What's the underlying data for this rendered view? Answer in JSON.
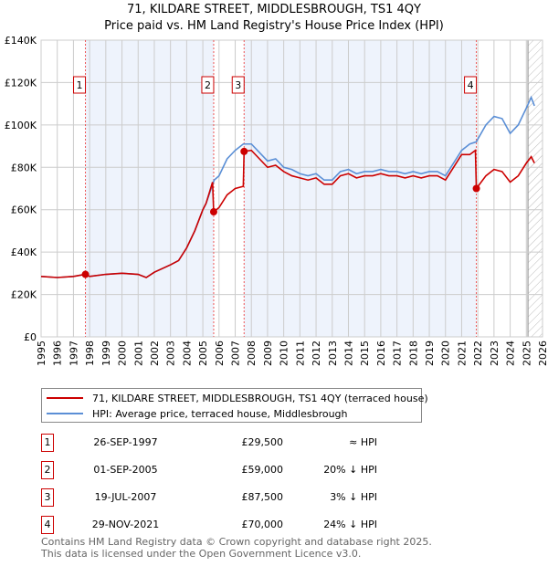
{
  "title": "71, KILDARE STREET, MIDDLESBROUGH, TS1 4QY",
  "subtitle": "Price paid vs. HM Land Registry's House Price Index (HPI)",
  "chart_data": {
    "type": "line",
    "xlim": [
      1995,
      2026
    ],
    "ylim": [
      0,
      140000
    ],
    "x_ticks": [
      "1995",
      "1996",
      "1997",
      "1998",
      "1999",
      "2000",
      "2001",
      "2002",
      "2003",
      "2004",
      "2005",
      "2006",
      "2007",
      "2008",
      "2009",
      "2010",
      "2011",
      "2012",
      "2013",
      "2014",
      "2015",
      "2016",
      "2017",
      "2018",
      "2019",
      "2020",
      "2021",
      "2022",
      "2023",
      "2024",
      "2025",
      "2026"
    ],
    "y_ticks": [
      {
        "v": 0,
        "label": "£0"
      },
      {
        "v": 20000,
        "label": "£20K"
      },
      {
        "v": 40000,
        "label": "£40K"
      },
      {
        "v": 60000,
        "label": "£60K"
      },
      {
        "v": 80000,
        "label": "£80K"
      },
      {
        "v": 100000,
        "label": "£100K"
      },
      {
        "v": 120000,
        "label": "£120K"
      },
      {
        "v": 140000,
        "label": "£140K"
      }
    ],
    "grid": true,
    "series": [
      {
        "name": "HPI: Average price, terraced house, Middlesbrough",
        "color": "#5b8fd6",
        "points": [
          [
            1995,
            28500
          ],
          [
            1996,
            28000
          ],
          [
            1997,
            28500
          ],
          [
            1997.75,
            29500
          ],
          [
            1998,
            28500
          ],
          [
            1999,
            29500
          ],
          [
            2000,
            30000
          ],
          [
            2001,
            29500
          ],
          [
            2001.5,
            28000
          ],
          [
            2002,
            30500
          ],
          [
            2003,
            34000
          ],
          [
            2003.5,
            36000
          ],
          [
            2004,
            42000
          ],
          [
            2004.5,
            50000
          ],
          [
            2005,
            60000
          ],
          [
            2005.2,
            63000
          ],
          [
            2005.7,
            74000
          ],
          [
            2006,
            76000
          ],
          [
            2006.5,
            84000
          ],
          [
            2007,
            88000
          ],
          [
            2007.5,
            91000
          ],
          [
            2008,
            91000
          ],
          [
            2008.5,
            87000
          ],
          [
            2009,
            83000
          ],
          [
            2009.5,
            84000
          ],
          [
            2010,
            80000
          ],
          [
            2010.5,
            79000
          ],
          [
            2011,
            77000
          ],
          [
            2011.5,
            76000
          ],
          [
            2012,
            77000
          ],
          [
            2012.5,
            74000
          ],
          [
            2013,
            74000
          ],
          [
            2013.5,
            78000
          ],
          [
            2014,
            79000
          ],
          [
            2014.5,
            77000
          ],
          [
            2015,
            78000
          ],
          [
            2015.5,
            78000
          ],
          [
            2016,
            79000
          ],
          [
            2016.5,
            78000
          ],
          [
            2017,
            78000
          ],
          [
            2017.5,
            77000
          ],
          [
            2018,
            78000
          ],
          [
            2018.5,
            77000
          ],
          [
            2019,
            78000
          ],
          [
            2019.5,
            78000
          ],
          [
            2020,
            76000
          ],
          [
            2020.5,
            82000
          ],
          [
            2021,
            88000
          ],
          [
            2021.5,
            91000
          ],
          [
            2021.9,
            92000
          ],
          [
            2022.5,
            100000
          ],
          [
            2023,
            104000
          ],
          [
            2023.5,
            103000
          ],
          [
            2024,
            96000
          ],
          [
            2024.5,
            100000
          ],
          [
            2025,
            108000
          ],
          [
            2025.3,
            113000
          ],
          [
            2025.5,
            109000
          ]
        ]
      },
      {
        "name": "71, KILDARE STREET, MIDDLESBROUGH, TS1 4QY (terraced house)",
        "color": "#cc0000",
        "points": [
          [
            1995,
            28500
          ],
          [
            1996,
            28000
          ],
          [
            1997,
            28500
          ],
          [
            1997.74,
            29500
          ],
          [
            1998,
            28500
          ],
          [
            1999,
            29500
          ],
          [
            2000,
            30000
          ],
          [
            2001,
            29500
          ],
          [
            2001.5,
            28000
          ],
          [
            2002,
            30500
          ],
          [
            2003,
            34000
          ],
          [
            2003.5,
            36000
          ],
          [
            2004,
            42000
          ],
          [
            2004.5,
            50000
          ],
          [
            2005,
            60000
          ],
          [
            2005.2,
            63000
          ],
          [
            2005.6,
            73000
          ],
          [
            2005.67,
            59000
          ],
          [
            2006,
            61000
          ],
          [
            2006.5,
            67000
          ],
          [
            2007,
            70000
          ],
          [
            2007.5,
            71000
          ],
          [
            2007.55,
            87500
          ],
          [
            2008,
            88000
          ],
          [
            2008.5,
            84000
          ],
          [
            2009,
            80000
          ],
          [
            2009.5,
            81000
          ],
          [
            2010,
            78000
          ],
          [
            2010.5,
            76000
          ],
          [
            2011,
            75000
          ],
          [
            2011.5,
            74000
          ],
          [
            2012,
            75000
          ],
          [
            2012.5,
            72000
          ],
          [
            2013,
            72000
          ],
          [
            2013.5,
            76000
          ],
          [
            2014,
            77000
          ],
          [
            2014.5,
            75000
          ],
          [
            2015,
            76000
          ],
          [
            2015.5,
            76000
          ],
          [
            2016,
            77000
          ],
          [
            2016.5,
            76000
          ],
          [
            2017,
            76000
          ],
          [
            2017.5,
            75000
          ],
          [
            2018,
            76000
          ],
          [
            2018.5,
            75000
          ],
          [
            2019,
            76000
          ],
          [
            2019.5,
            76000
          ],
          [
            2020,
            74000
          ],
          [
            2020.5,
            80000
          ],
          [
            2021,
            86000
          ],
          [
            2021.5,
            86000
          ],
          [
            2021.85,
            88000
          ],
          [
            2021.91,
            70000
          ],
          [
            2022.5,
            76000
          ],
          [
            2023,
            79000
          ],
          [
            2023.5,
            78000
          ],
          [
            2024,
            73000
          ],
          [
            2024.5,
            76000
          ],
          [
            2025,
            82000
          ],
          [
            2025.3,
            85000
          ],
          [
            2025.5,
            82000
          ]
        ]
      }
    ],
    "sales": [
      {
        "label": "1",
        "x": 1997.74,
        "y": 29500
      },
      {
        "label": "2",
        "x": 2005.67,
        "y": 59000
      },
      {
        "label": "3",
        "x": 2007.55,
        "y": 87500
      },
      {
        "label": "4",
        "x": 2021.91,
        "y": 70000
      }
    ],
    "shaded_ranges": [
      [
        1997.74,
        2005.67
      ],
      [
        2007.55,
        2021.91
      ]
    ],
    "hatched_from": 2025.1
  },
  "legend": {
    "property": "71, KILDARE STREET, MIDDLESBROUGH, TS1 4QY (terraced house)",
    "hpi": "HPI: Average price, terraced house, Middlesbrough"
  },
  "table": [
    {
      "num": "1",
      "date": "26-SEP-1997",
      "price": "£29,500",
      "rel": "≈ HPI"
    },
    {
      "num": "2",
      "date": "01-SEP-2005",
      "price": "£59,000",
      "rel": "20% ↓ HPI"
    },
    {
      "num": "3",
      "date": "19-JUL-2007",
      "price": "£87,500",
      "rel": "3% ↓ HPI"
    },
    {
      "num": "4",
      "date": "29-NOV-2021",
      "price": "£70,000",
      "rel": "24% ↓ HPI"
    }
  ],
  "footer": [
    "Contains HM Land Registry data © Crown copyright and database right 2025.",
    "This data is licensed under the Open Government Licence v3.0."
  ]
}
